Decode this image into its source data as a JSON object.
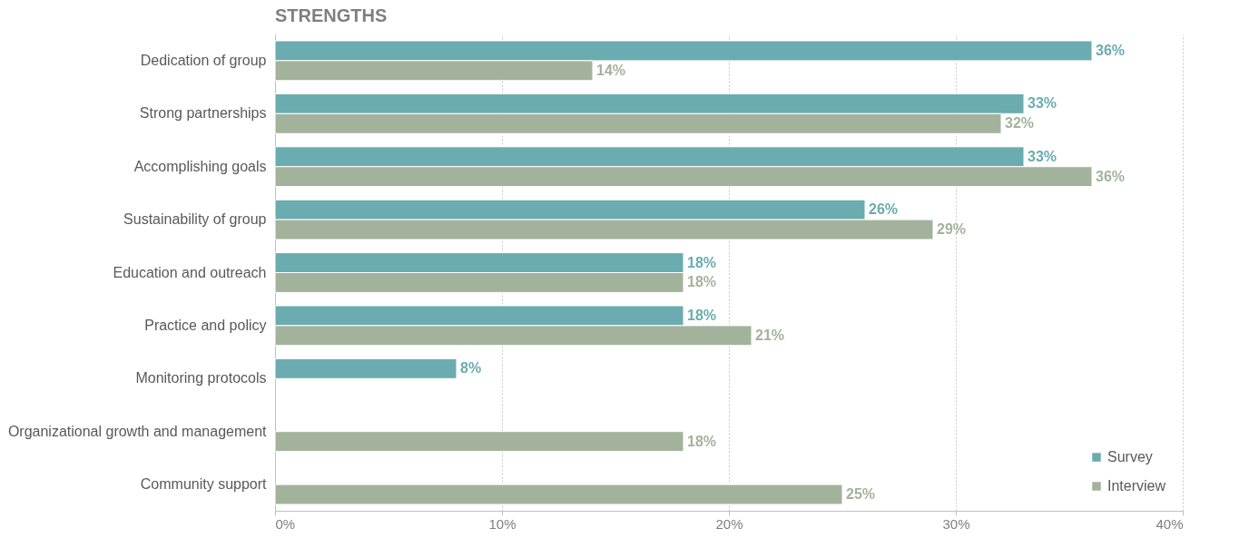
{
  "chart_data": {
    "type": "bar",
    "orientation": "horizontal",
    "title": "STRENGTHS",
    "categories": [
      "Dedication of group",
      "Strong partnerships",
      "Accomplishing goals",
      "Sustainability of group",
      "Education and outreach",
      "Practice and policy",
      "Monitoring protocols",
      "Organizational growth and management",
      "Community support"
    ],
    "series": [
      {
        "name": "Survey",
        "color": "#6aacb0",
        "values": [
          36,
          33,
          33,
          26,
          18,
          18,
          8,
          null,
          null
        ],
        "value_labels": [
          "36%",
          "33%",
          "33%",
          "26%",
          "18%",
          "18%",
          "8%",
          null,
          null
        ]
      },
      {
        "name": "Interview",
        "color": "#a3b39b",
        "values": [
          14,
          32,
          36,
          29,
          18,
          21,
          null,
          18,
          25
        ],
        "value_labels": [
          "14%",
          "32%",
          "36%",
          "29%",
          "18%",
          "21%",
          null,
          "18%",
          "25%"
        ]
      }
    ],
    "xlim": [
      0,
      40
    ],
    "xticks": [
      {
        "value": 0,
        "label": "0%"
      },
      {
        "value": 10,
        "label": "10%"
      },
      {
        "value": 20,
        "label": "20%"
      },
      {
        "value": 30,
        "label": "30%"
      },
      {
        "value": 40,
        "label": "40%"
      }
    ],
    "grid": "x",
    "legend": "bottom right"
  }
}
